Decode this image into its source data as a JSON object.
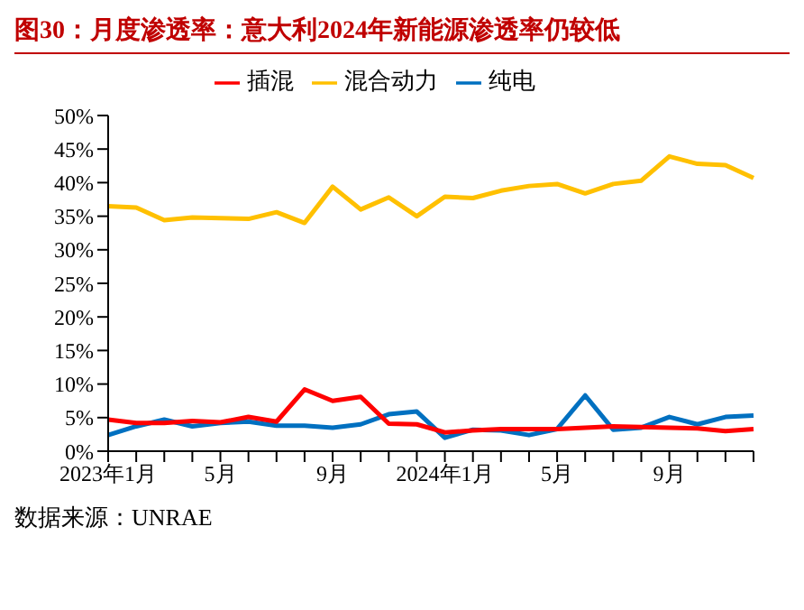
{
  "chart_data": {
    "type": "line",
    "title": "图30：月度渗透率：意大利2024年新能源渗透率仍较低",
    "categories": [
      "2023年1月",
      null,
      null,
      null,
      "5月",
      null,
      null,
      null,
      "9月",
      null,
      null,
      null,
      "2024年1月",
      null,
      null,
      null,
      "5月",
      null,
      null,
      null,
      "9月",
      null,
      null,
      null
    ],
    "series": [
      {
        "name": "纯电",
        "color": "#0070c0",
        "values": [
          2.4,
          3.7,
          4.7,
          3.7,
          4.2,
          4.4,
          3.8,
          3.8,
          3.5,
          4.0,
          5.5,
          5.9,
          2.0,
          3.2,
          3.1,
          2.4,
          3.3,
          8.3,
          3.2,
          3.5,
          5.1,
          4.0,
          5.1,
          5.3
        ]
      },
      {
        "name": "插混",
        "color": "#ff0000",
        "values": [
          4.7,
          4.2,
          4.2,
          4.5,
          4.3,
          5.1,
          4.4,
          9.2,
          7.5,
          8.1,
          4.1,
          4.0,
          2.8,
          3.1,
          3.3,
          3.3,
          3.3,
          3.5,
          3.7,
          3.6,
          3.5,
          3.4,
          3.0,
          3.3
        ]
      },
      {
        "name": "混合动力",
        "color": "#ffc000",
        "values": [
          36.5,
          36.3,
          34.4,
          34.8,
          34.7,
          34.6,
          35.6,
          34.0,
          39.4,
          36.0,
          37.8,
          35.0,
          37.9,
          37.7,
          38.8,
          39.5,
          39.8,
          38.4,
          39.8,
          40.3,
          43.9,
          42.8,
          42.6,
          40.7
        ]
      }
    ],
    "ylim": [
      0,
      50
    ],
    "yticks": [
      {
        "value": 0,
        "label": "0%"
      },
      {
        "value": 5,
        "label": "5%"
      },
      {
        "value": 10,
        "label": "10%"
      },
      {
        "value": 15,
        "label": "15%"
      },
      {
        "value": 20,
        "label": "20%"
      },
      {
        "value": 25,
        "label": "25%"
      },
      {
        "value": 30,
        "label": "30%"
      },
      {
        "value": 35,
        "label": "35%"
      },
      {
        "value": 40,
        "label": "40%"
      },
      {
        "value": 45,
        "label": "45%"
      },
      {
        "value": 50,
        "label": "50%"
      }
    ],
    "legend": "top",
    "grid": false,
    "marker": "none",
    "line_style": "solid",
    "annotations": [
      "数据来源：UNRAE"
    ]
  }
}
